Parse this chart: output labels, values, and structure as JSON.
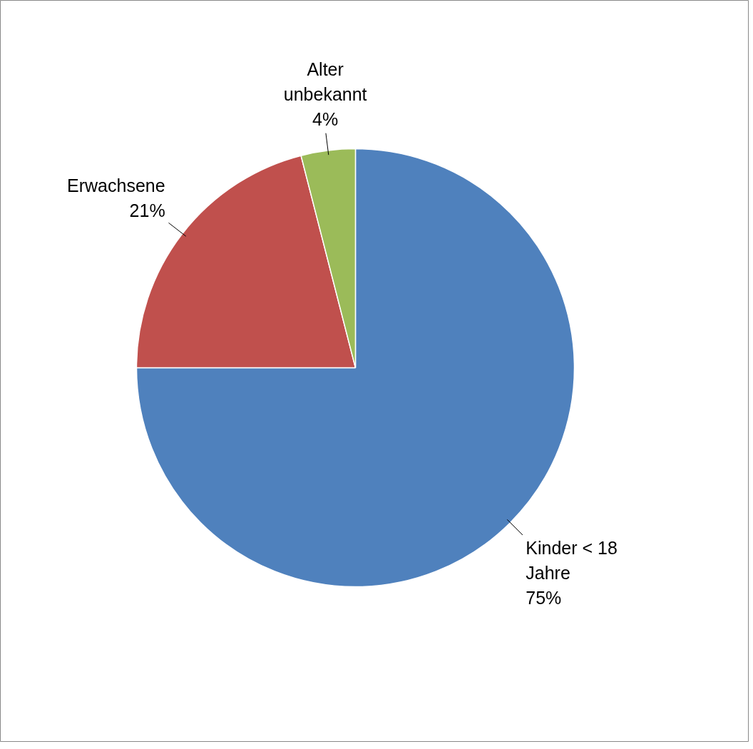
{
  "chart_data": {
    "type": "pie",
    "categories": [
      "Kinder < 18 Jahre",
      "Erwachsene",
      "Alter unbekannt"
    ],
    "values": [
      75,
      21,
      4
    ],
    "value_labels": [
      "75%",
      "21%",
      "4%"
    ],
    "colors": [
      "#4f81bd",
      "#c0504d",
      "#9bbb59"
    ]
  }
}
